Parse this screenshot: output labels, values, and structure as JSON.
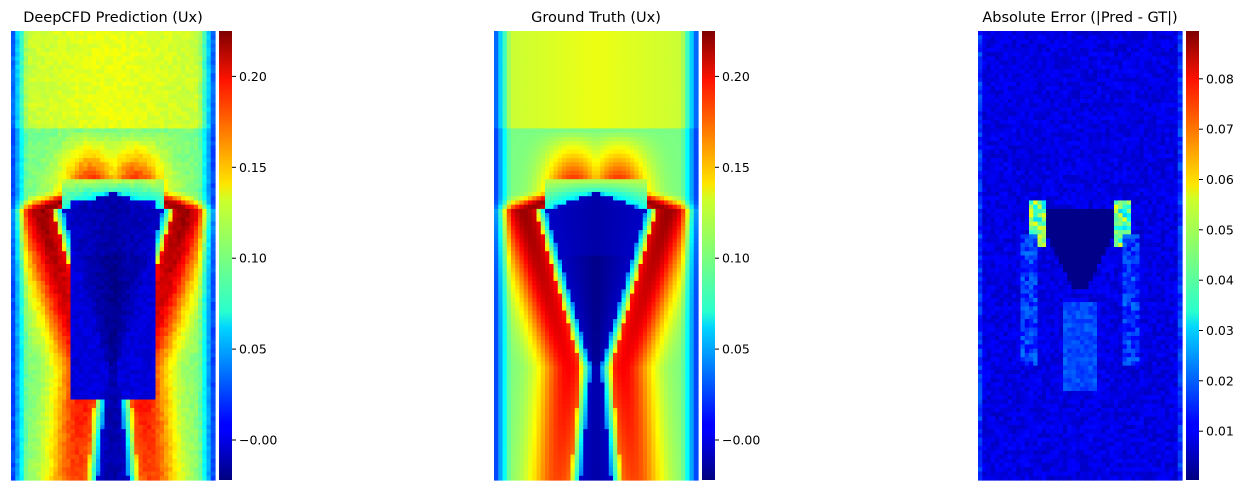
{
  "colormap": "jet",
  "chart_data": [
    {
      "type": "heatmap",
      "title": "DeepCFD Prediction (Ux)",
      "field": "prediction",
      "colorbar": {
        "range": [
          -0.022,
          0.225
        ],
        "ticks": [
          -0.0,
          0.05,
          0.1,
          0.15,
          0.2
        ],
        "tick_labels": [
          "−0.00",
          "0.05",
          "0.10",
          "0.15",
          "0.20"
        ]
      },
      "grid": false,
      "axes": "off"
    },
    {
      "type": "heatmap",
      "title": "Ground Truth (Ux)",
      "field": "ground_truth",
      "colorbar": {
        "range": [
          -0.022,
          0.225
        ],
        "ticks": [
          -0.0,
          0.05,
          0.1,
          0.15,
          0.2
        ],
        "tick_labels": [
          "−0.00",
          "0.05",
          "0.10",
          "0.15",
          "0.20"
        ]
      },
      "grid": false,
      "axes": "off"
    },
    {
      "type": "heatmap",
      "title": "Absolute Error (|Pred - GT|)",
      "field": "abs_error",
      "colorbar": {
        "range": [
          0.0003,
          0.0895
        ],
        "ticks": [
          0.01,
          0.02,
          0.03,
          0.04,
          0.05,
          0.06,
          0.07,
          0.08
        ],
        "tick_labels": [
          "0.01",
          "0.02",
          "0.03",
          "0.04",
          "0.05",
          "0.06",
          "0.07",
          "0.08"
        ]
      },
      "grid": false,
      "axes": "off"
    }
  ]
}
